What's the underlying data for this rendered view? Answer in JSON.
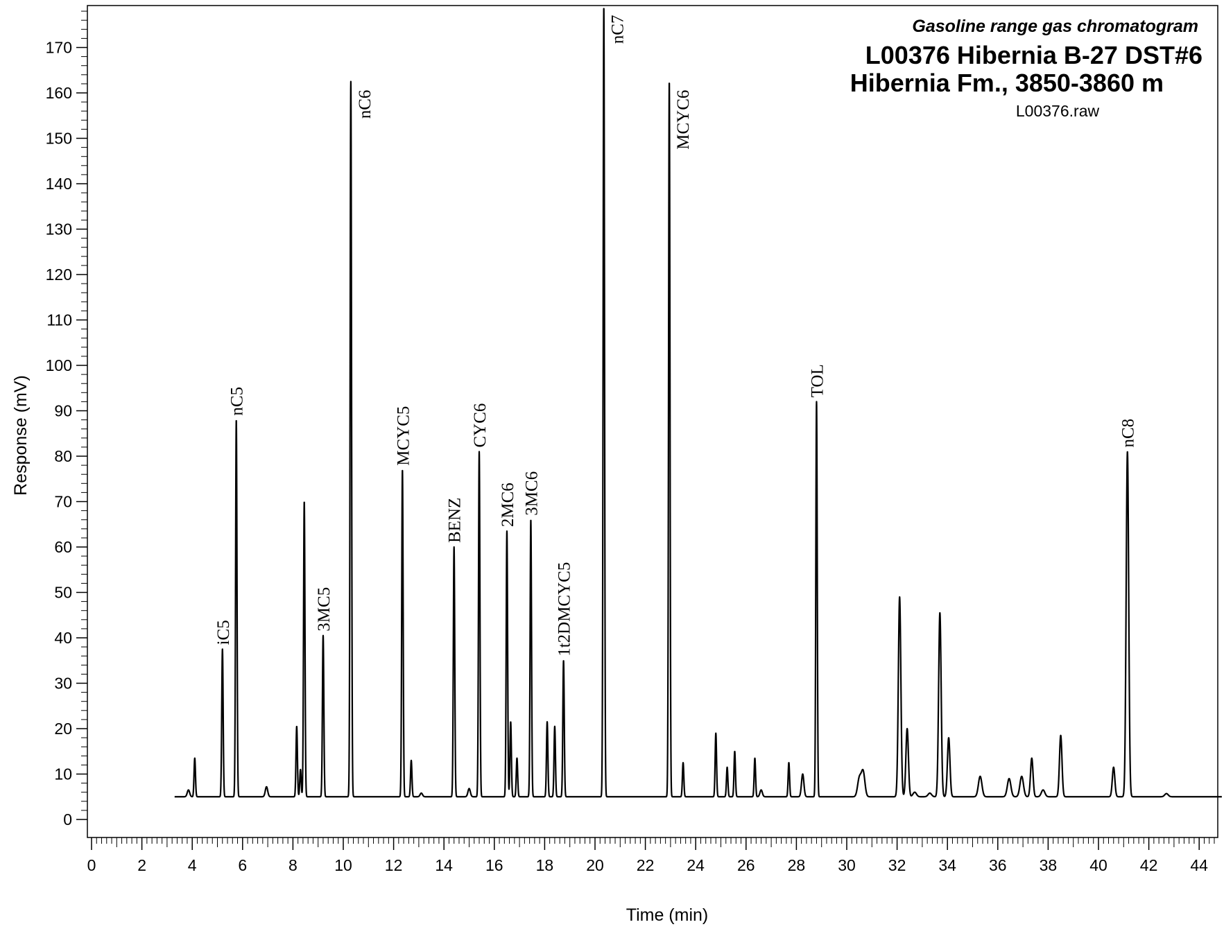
{
  "chart_data": {
    "type": "line",
    "title": "Gasoline range gas chromatogram",
    "subtitle_lines": [
      "L00376  Hibernia B-27  DST#6",
      "Hibernia Fm., 3850-3860 m"
    ],
    "file_label": "L00376.raw",
    "xlabel": "Time (min)",
    "ylabel": "Response (mV)",
    "xlim": [
      0,
      45
    ],
    "ylim": [
      -4,
      180
    ],
    "x_ticks": [
      "0",
      "2",
      "4",
      "6",
      "8",
      "10",
      "12",
      "14",
      "16",
      "18",
      "20",
      "22",
      "24",
      "26",
      "28",
      "30",
      "32",
      "34",
      "36",
      "38",
      "40",
      "42",
      "44"
    ],
    "y_ticks": [
      "0",
      "10",
      "20",
      "30",
      "40",
      "50",
      "60",
      "70",
      "80",
      "90",
      "100",
      "110",
      "120",
      "130",
      "140",
      "150",
      "160",
      "170"
    ],
    "baseline": 5,
    "labeled_peaks": [
      {
        "label": "iC5",
        "x": 5.2,
        "y": 37.5
      },
      {
        "label": "nC5",
        "x": 5.75,
        "y": 88
      },
      {
        "label": "3MC5",
        "x": 9.2,
        "y": 40.5
      },
      {
        "label": "nC6",
        "x": 10.3,
        "y": 162.5
      },
      {
        "label": "MCYC5",
        "x": 12.35,
        "y": 77
      },
      {
        "label": "BENZ",
        "x": 14.4,
        "y": 60
      },
      {
        "label": "CYC6",
        "x": 15.4,
        "y": 81
      },
      {
        "label": "2MC6",
        "x": 16.5,
        "y": 63.5
      },
      {
        "label": "3MC6",
        "x": 17.45,
        "y": 66
      },
      {
        "label": "1t2DMCYC5",
        "x": 18.75,
        "y": 35
      },
      {
        "label": "nC7",
        "x": 20.35,
        "y": 179
      },
      {
        "label": "MCYC6",
        "x": 22.95,
        "y": 162.5
      },
      {
        "label": "TOL",
        "x": 28.8,
        "y": 92
      },
      {
        "label": "nC8",
        "x": 41.15,
        "y": 81
      }
    ],
    "unlabeled_peaks": [
      {
        "x": 3.85,
        "y": 6.5
      },
      {
        "x": 4.1,
        "y": 13.5
      },
      {
        "x": 6.95,
        "y": 7.2
      },
      {
        "x": 8.15,
        "y": 20.5
      },
      {
        "x": 8.3,
        "y": 11
      },
      {
        "x": 8.45,
        "y": 70
      },
      {
        "x": 12.7,
        "y": 13
      },
      {
        "x": 13.1,
        "y": 5.8
      },
      {
        "x": 15.0,
        "y": 6.8
      },
      {
        "x": 16.65,
        "y": 21.5
      },
      {
        "x": 16.9,
        "y": 13.5
      },
      {
        "x": 18.1,
        "y": 21.5
      },
      {
        "x": 18.4,
        "y": 20.5
      },
      {
        "x": 23.5,
        "y": 12.5
      },
      {
        "x": 24.8,
        "y": 19
      },
      {
        "x": 25.25,
        "y": 11.5
      },
      {
        "x": 25.55,
        "y": 15
      },
      {
        "x": 26.35,
        "y": 13.5
      },
      {
        "x": 26.6,
        "y": 6.5
      },
      {
        "x": 27.7,
        "y": 12.5
      },
      {
        "x": 28.25,
        "y": 10
      },
      {
        "x": 30.5,
        "y": 9
      },
      {
        "x": 30.65,
        "y": 10.5
      },
      {
        "x": 32.1,
        "y": 49
      },
      {
        "x": 32.4,
        "y": 20
      },
      {
        "x": 32.7,
        "y": 6
      },
      {
        "x": 33.3,
        "y": 5.8
      },
      {
        "x": 33.7,
        "y": 45.5
      },
      {
        "x": 34.05,
        "y": 18
      },
      {
        "x": 35.3,
        "y": 9.5
      },
      {
        "x": 36.45,
        "y": 9
      },
      {
        "x": 36.95,
        "y": 9.5
      },
      {
        "x": 37.35,
        "y": 13.5
      },
      {
        "x": 37.8,
        "y": 6.5
      },
      {
        "x": 38.5,
        "y": 18.5
      },
      {
        "x": 40.6,
        "y": 11.5
      },
      {
        "x": 42.7,
        "y": 5.7
      }
    ],
    "grid": false,
    "legend": "none"
  }
}
